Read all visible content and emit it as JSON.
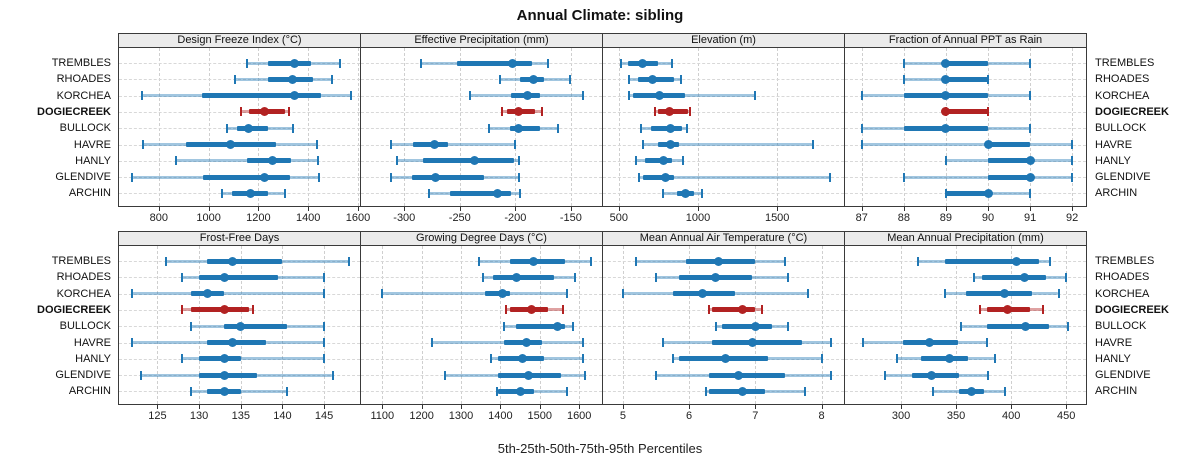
{
  "title": "Annual Climate: sibling",
  "caption": "5th-25th-50th-75th-95th Percentiles",
  "percentile_labels": [
    "5th",
    "25th",
    "50th",
    "75th",
    "95th"
  ],
  "sites": [
    "TREMBLES",
    "RHOADES",
    "KORCHEA",
    "DOGIECREEK",
    "BULLOCK",
    "HAVRE",
    "HANLY",
    "GLENDIVE",
    "ARCHIN"
  ],
  "highlight_site": "DOGIECREEK",
  "colors": {
    "series": "#1f77b4",
    "series_light": "rgba(31,119,180,0.42)",
    "highlight": "#b22222",
    "highlight_light": "rgba(178,34,34,0.42)",
    "strip_bg": "#ebebeb",
    "panel_border": "#3a3a3a",
    "grid": "#cfcfcf",
    "text": "#111111"
  },
  "chart_data": [
    {
      "type": "dot-interval",
      "title": "Design Freeze Index (°C)",
      "row": 0,
      "xlim": [
        640,
        1608
      ],
      "ticks": [
        800,
        1000,
        1200,
        1400,
        1600
      ],
      "tick_labels": [
        "800",
        "1000",
        "1200",
        "1400",
        "1600"
      ],
      "values": [
        [
          1155,
          1240,
          1343,
          1413,
          1529
        ],
        [
          1107,
          1237,
          1335,
          1420,
          1495
        ],
        [
          733,
          975,
          1345,
          1453,
          1570
        ],
        [
          1128,
          1160,
          1223,
          1305,
          1322
        ],
        [
          1073,
          1114,
          1159,
          1237,
          1339
        ],
        [
          735,
          910,
          1088,
          1271,
          1434
        ],
        [
          869,
          1155,
          1256,
          1331,
          1441
        ],
        [
          692,
          978,
          1223,
          1328,
          1445
        ],
        [
          1053,
          1094,
          1169,
          1237,
          1305
        ]
      ]
    },
    {
      "type": "dot-interval",
      "title": "Effective Precipitation (mm)",
      "row": 0,
      "xlim": [
        -339,
        -122
      ],
      "ticks": [
        -300,
        -250,
        -200,
        -150
      ],
      "tick_labels": [
        "-300",
        "-250",
        "-200",
        "-150"
      ],
      "values": [
        [
          -285,
          -253,
          -203,
          -185,
          -171
        ],
        [
          -214,
          -196,
          -184,
          -174,
          -151
        ],
        [
          -241,
          -204,
          -189,
          -178,
          -139
        ],
        [
          -212,
          -208,
          -197,
          -182,
          -176
        ],
        [
          -224,
          -205,
          -197,
          -178,
          -162
        ],
        [
          -312,
          -292,
          -273,
          -261,
          -200
        ],
        [
          -307,
          -283,
          -237,
          -201,
          -197
        ],
        [
          -312,
          -293,
          -272,
          -228,
          -197
        ],
        [
          -278,
          -259,
          -216,
          -204,
          -196
        ]
      ]
    },
    {
      "type": "dot-interval",
      "title": "Elevation (m)",
      "row": 0,
      "xlim": [
        400,
        1922
      ],
      "ticks": [
        500,
        1000,
        1500
      ],
      "tick_labels": [
        "500",
        "1000",
        "1500"
      ],
      "values": [
        [
          515,
          555,
          650,
          748,
          835
        ],
        [
          565,
          618,
          710,
          850,
          892
        ],
        [
          562,
          590,
          755,
          920,
          1360
        ],
        [
          728,
          745,
          820,
          938,
          950
        ],
        [
          640,
          700,
          824,
          900,
          928
        ],
        [
          655,
          748,
          829,
          880,
          1723
        ],
        [
          605,
          665,
          783,
          835,
          903
        ],
        [
          625,
          655,
          793,
          851,
          1833
        ],
        [
          779,
          866,
          922,
          975,
          1027
        ]
      ]
    },
    {
      "type": "dot-interval",
      "title": "Fraction of Annual PPT as Rain",
      "row": 0,
      "xlim": [
        86.6,
        92.33
      ],
      "ticks": [
        87,
        88,
        89,
        90,
        91,
        92
      ],
      "tick_labels": [
        "87",
        "88",
        "89",
        "90",
        "91",
        "92"
      ],
      "values": [
        [
          88,
          89,
          89,
          90,
          91
        ],
        [
          88,
          89,
          89,
          90,
          90
        ],
        [
          87,
          88,
          89,
          90,
          91
        ],
        [
          89,
          89,
          89,
          90,
          90
        ],
        [
          87,
          88,
          89,
          90,
          91
        ],
        [
          87,
          90,
          90,
          91,
          92
        ],
        [
          89,
          90,
          91,
          91,
          92
        ],
        [
          88,
          90,
          91,
          91,
          92
        ],
        [
          89,
          89,
          90,
          90,
          91
        ]
      ]
    },
    {
      "type": "dot-interval",
      "title": "Frost-Free Days",
      "row": 1,
      "xlim": [
        120.4,
        149.3
      ],
      "ticks": [
        125,
        130,
        135,
        140,
        145
      ],
      "tick_labels": [
        "125",
        "130",
        "135",
        "140",
        "145"
      ],
      "values": [
        [
          126,
          131,
          134,
          140,
          148
        ],
        [
          128,
          130,
          133,
          139.5,
          145
        ],
        [
          122,
          129,
          131,
          133,
          145
        ],
        [
          128,
          129,
          133,
          136,
          136.5
        ],
        [
          129,
          133,
          135,
          140.5,
          145
        ],
        [
          122,
          131,
          134,
          138,
          145
        ],
        [
          128,
          130,
          133,
          135,
          145
        ],
        [
          123,
          130,
          133,
          137,
          146
        ],
        [
          129,
          131,
          133,
          135,
          140.5
        ]
      ]
    },
    {
      "type": "dot-interval",
      "title": "Growing Degree Days (°C)",
      "row": 1,
      "xlim": [
        1046,
        1658
      ],
      "ticks": [
        1100,
        1200,
        1300,
        1400,
        1500,
        1600
      ],
      "tick_labels": [
        "1100",
        "1200",
        "1300",
        "1400",
        "1500",
        "1600"
      ],
      "values": [
        [
          1345,
          1425,
          1485,
          1565,
          1630
        ],
        [
          1355,
          1380,
          1440,
          1535,
          1590
        ],
        [
          1100,
          1360,
          1405,
          1425,
          1570
        ],
        [
          1415,
          1425,
          1480,
          1520,
          1560
        ],
        [
          1410,
          1440,
          1545,
          1565,
          1585
        ],
        [
          1225,
          1410,
          1465,
          1505,
          1610
        ],
        [
          1375,
          1395,
          1455,
          1510,
          1610
        ],
        [
          1260,
          1395,
          1470,
          1555,
          1615
        ],
        [
          1390,
          1395,
          1450,
          1485,
          1570
        ]
      ]
    },
    {
      "type": "dot-interval",
      "title": "Mean Annual Air Temperature (°C)",
      "row": 1,
      "xlim": [
        4.7,
        8.34
      ],
      "ticks": [
        5,
        6,
        7,
        8
      ],
      "tick_labels": [
        "5",
        "6",
        "7",
        "8"
      ],
      "values": [
        [
          5.2,
          5.95,
          6.45,
          7.0,
          7.45
        ],
        [
          5.5,
          5.85,
          6.4,
          6.95,
          7.5
        ],
        [
          5.0,
          5.75,
          6.2,
          6.7,
          7.8
        ],
        [
          6.3,
          6.35,
          6.8,
          7.0,
          7.1
        ],
        [
          6.4,
          6.5,
          7.0,
          7.25,
          7.5
        ],
        [
          5.6,
          6.35,
          6.95,
          7.7,
          8.15
        ],
        [
          5.75,
          5.85,
          6.55,
          7.2,
          8.0
        ],
        [
          5.5,
          6.3,
          6.75,
          7.45,
          8.15
        ],
        [
          6.25,
          6.3,
          6.8,
          7.15,
          7.75
        ]
      ]
    },
    {
      "type": "dot-interval",
      "title": "Mean Annual Precipitation (mm)",
      "row": 1,
      "xlim": [
        249,
        468
      ],
      "ticks": [
        300,
        350,
        400,
        450
      ],
      "tick_labels": [
        "300",
        "350",
        "400",
        "450"
      ],
      "values": [
        [
          315,
          340,
          405,
          425,
          435
        ],
        [
          366,
          373,
          412,
          432,
          450
        ],
        [
          340,
          359,
          394,
          419,
          443
        ],
        [
          372,
          378,
          397,
          417,
          429
        ],
        [
          354,
          378,
          413,
          434,
          452
        ],
        [
          265,
          302,
          326,
          352,
          378
        ],
        [
          296,
          318,
          344,
          361,
          385
        ],
        [
          285,
          310,
          328,
          353,
          379
        ],
        [
          329,
          353,
          364,
          375,
          394
        ]
      ]
    }
  ]
}
